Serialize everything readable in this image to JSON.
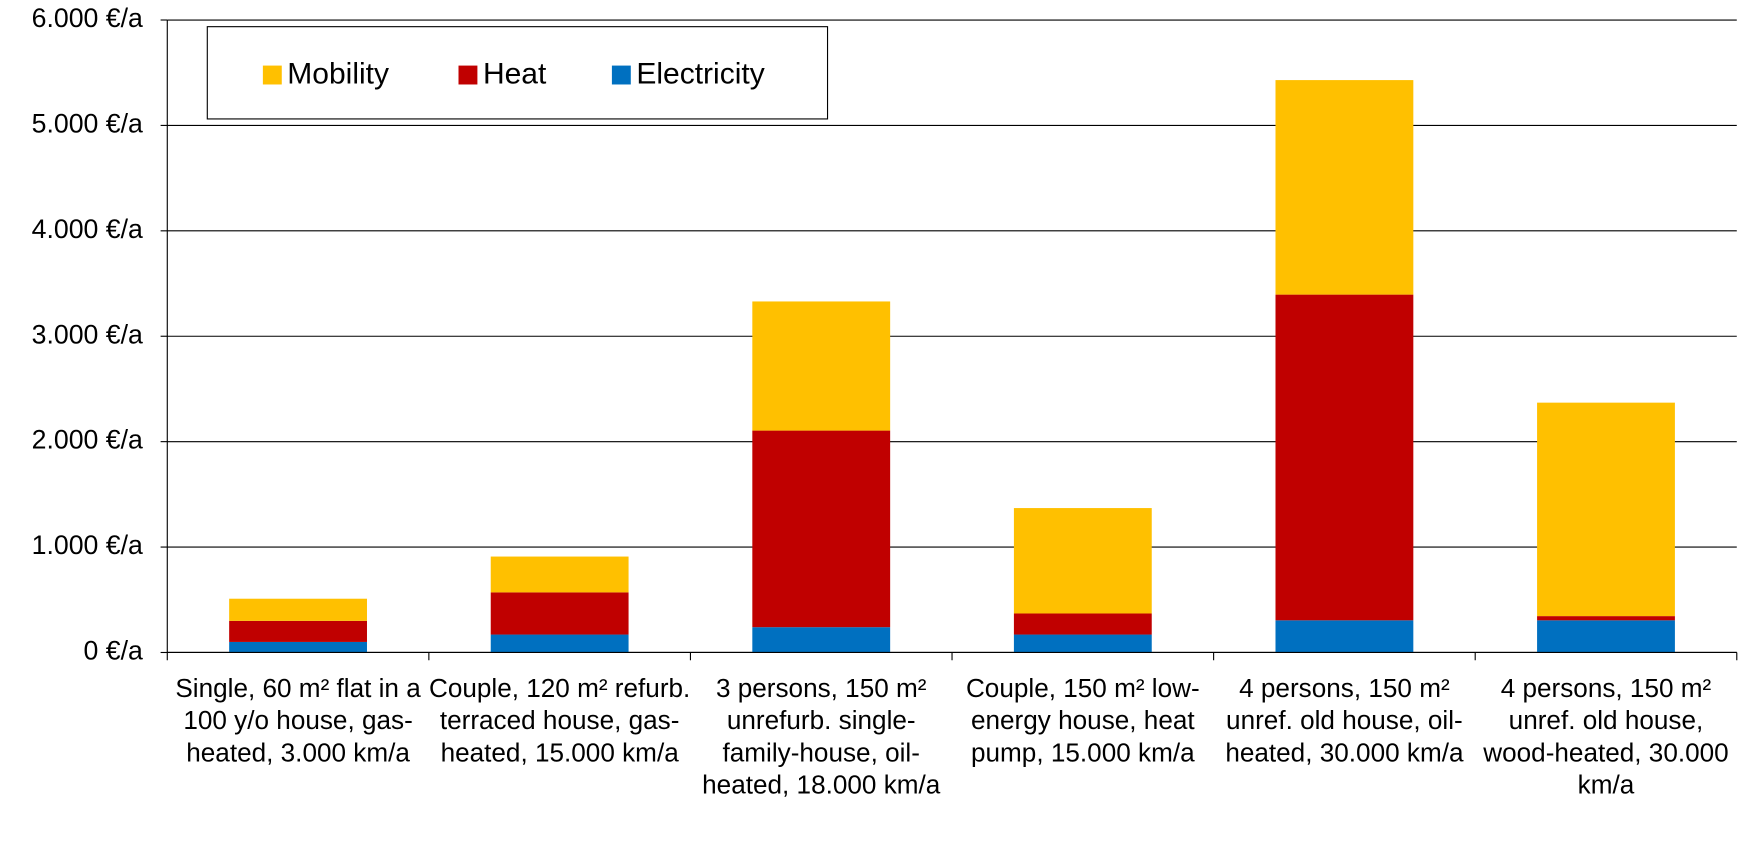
{
  "chart_data": {
    "type": "stacked_bar",
    "categories": [
      "Single, 60 m² flat in a 100 y/o house, gas-heated, 3.000 km/a",
      "Couple, 120 m² refurb. terraced house, gas-heated, 15.000 km/a",
      "3 persons, 150 m² unrefurb. single-family-house, oil-heated, 18.000 km/a",
      "Couple, 150 m² low-energy house, heat pump, 15.000 km/a",
      "4 persons, 150 m² unref. old house, oil-heated, 30.000 km/a",
      "4 persons, 150 m² unref. old house, wood-heated, 30.000 km/a"
    ],
    "series": [
      {
        "name": "Electricity",
        "color": "#0070C0",
        "values": [
          100,
          170,
          240,
          170,
          305,
          305
        ]
      },
      {
        "name": "Heat",
        "color": "#C00000",
        "values": [
          200,
          400,
          1865,
          200,
          3090,
          40
        ]
      },
      {
        "name": "Mobility",
        "color": "#FFC000",
        "values": [
          210,
          340,
          1225,
          1000,
          2035,
          2025
        ]
      }
    ],
    "ylim": [
      0,
      6000
    ],
    "yticks": [
      {
        "value": 0,
        "label": "0 €/a"
      },
      {
        "value": 1000,
        "label": "1.000 €/a"
      },
      {
        "value": 2000,
        "label": "2.000 €/a"
      },
      {
        "value": 3000,
        "label": "3.000 €/a"
      },
      {
        "value": 4000,
        "label": "4.000 €/a"
      },
      {
        "value": 5000,
        "label": "5.000 €/a"
      },
      {
        "value": 6000,
        "label": "6.000 €/a"
      }
    ],
    "grid": true,
    "legend": "top-left"
  }
}
